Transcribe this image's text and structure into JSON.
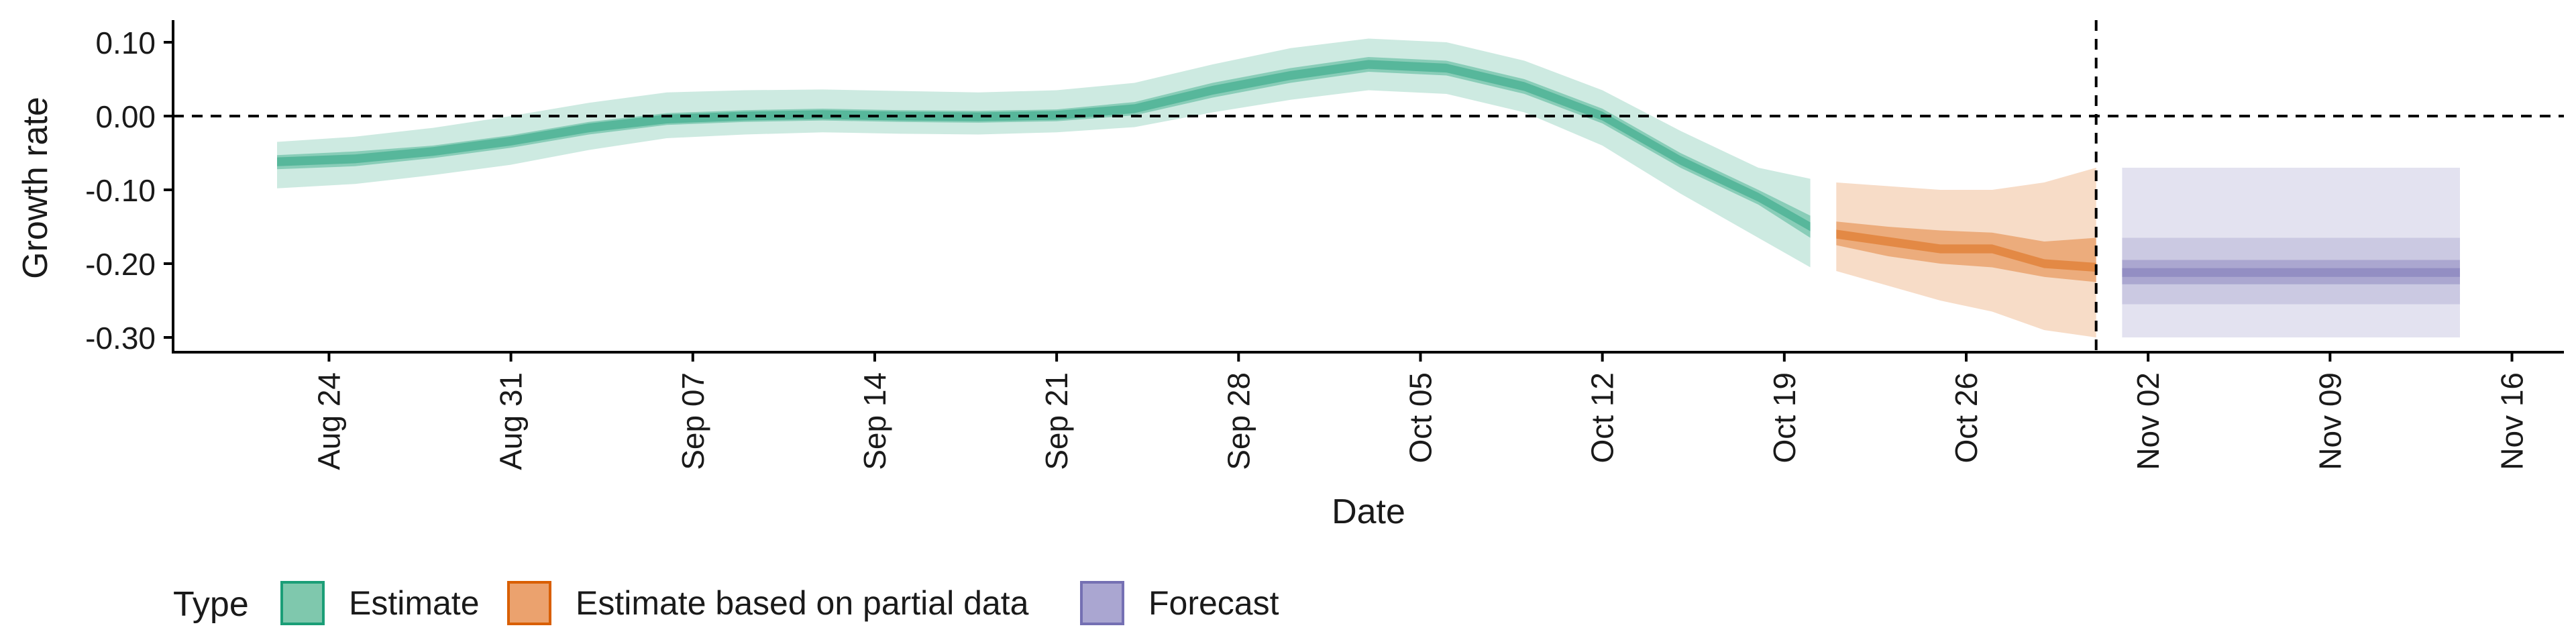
{
  "chart_data": {
    "type": "area",
    "xlabel": "Date",
    "ylabel": "Growth rate",
    "x_ticks": [
      "Aug 24",
      "Aug 31",
      "Sep 07",
      "Sep 14",
      "Sep 21",
      "Sep 28",
      "Oct 05",
      "Oct 12",
      "Oct 19",
      "Oct 26",
      "Nov 02",
      "Nov 09",
      "Nov 16"
    ],
    "y_ticks": [
      "0.10",
      "0.00",
      "-0.10",
      "-0.20",
      "-0.30"
    ],
    "ylim": [
      -0.32,
      0.13
    ],
    "xlim": [
      "2020-08-18",
      "2020-11-18"
    ],
    "grid": false,
    "reference_lines": {
      "horizontal_y": 0.0,
      "vertical_date": "2020-10-31"
    },
    "legend": {
      "position": "bottom-left",
      "title": "Type",
      "entries": [
        {
          "label": "Estimate",
          "fill": "#7fc8ad",
          "stroke": "#1b9e77"
        },
        {
          "label": "Estimate based on partial data",
          "fill": "#eba26e",
          "stroke": "#d95f02"
        },
        {
          "label": "Forecast",
          "fill": "#aaa6d1",
          "stroke": "#7570b3"
        }
      ]
    },
    "series": [
      {
        "type_label": "Estimate",
        "color": "#1b9e77",
        "x": [
          "2020-08-22",
          "2020-08-25",
          "2020-08-28",
          "2020-08-31",
          "2020-09-03",
          "2020-09-06",
          "2020-09-09",
          "2020-09-12",
          "2020-09-15",
          "2020-09-18",
          "2020-09-21",
          "2020-09-24",
          "2020-09-27",
          "2020-09-30",
          "2020-10-03",
          "2020-10-06",
          "2020-10-09",
          "2020-10-12",
          "2020-10-15",
          "2020-10-18",
          "2020-10-20"
        ],
        "median": [
          -0.062,
          -0.058,
          -0.048,
          -0.034,
          -0.016,
          -0.004,
          0.0,
          0.002,
          0.0,
          -0.001,
          0.001,
          0.01,
          0.035,
          0.055,
          0.07,
          0.065,
          0.04,
          0.0,
          -0.06,
          -0.11,
          -0.15
        ],
        "lower_50": [
          -0.072,
          -0.068,
          -0.057,
          -0.043,
          -0.025,
          -0.012,
          -0.008,
          -0.006,
          -0.008,
          -0.009,
          -0.007,
          0.001,
          0.025,
          0.045,
          0.06,
          0.055,
          0.03,
          -0.01,
          -0.07,
          -0.12,
          -0.165
        ],
        "upper_50": [
          -0.053,
          -0.048,
          -0.04,
          -0.026,
          -0.008,
          0.004,
          0.008,
          0.01,
          0.008,
          0.007,
          0.009,
          0.019,
          0.045,
          0.065,
          0.08,
          0.075,
          0.05,
          0.01,
          -0.05,
          -0.1,
          -0.135
        ],
        "lower_90": [
          -0.098,
          -0.092,
          -0.08,
          -0.066,
          -0.046,
          -0.03,
          -0.025,
          -0.022,
          -0.024,
          -0.025,
          -0.022,
          -0.015,
          0.005,
          0.022,
          0.035,
          0.03,
          0.005,
          -0.04,
          -0.105,
          -0.165,
          -0.205
        ],
        "upper_90": [
          -0.035,
          -0.028,
          -0.016,
          0.0,
          0.018,
          0.032,
          0.035,
          0.036,
          0.034,
          0.032,
          0.035,
          0.045,
          0.07,
          0.092,
          0.105,
          0.1,
          0.075,
          0.035,
          -0.02,
          -0.07,
          -0.085
        ]
      },
      {
        "type_label": "Estimate based on partial data",
        "color": "#d95f02",
        "x": [
          "2020-10-21",
          "2020-10-23",
          "2020-10-25",
          "2020-10-27",
          "2020-10-29",
          "2020-10-31"
        ],
        "median": [
          -0.16,
          -0.17,
          -0.18,
          -0.18,
          -0.2,
          -0.205
        ],
        "lower_50": [
          -0.175,
          -0.19,
          -0.2,
          -0.205,
          -0.218,
          -0.225
        ],
        "upper_50": [
          -0.143,
          -0.15,
          -0.155,
          -0.158,
          -0.17,
          -0.165
        ],
        "lower_90": [
          -0.21,
          -0.23,
          -0.25,
          -0.265,
          -0.29,
          -0.3
        ],
        "upper_90": [
          -0.09,
          -0.095,
          -0.1,
          -0.1,
          -0.09,
          -0.07
        ]
      },
      {
        "type_label": "Forecast",
        "color": "#7570b3",
        "x": [
          "2020-11-01",
          "2020-11-14"
        ],
        "median": [
          -0.212,
          -0.212
        ],
        "lower_50": [
          -0.228,
          -0.228
        ],
        "upper_50": [
          -0.195,
          -0.195
        ],
        "lower_90": [
          -0.255,
          -0.255
        ],
        "upper_90": [
          -0.165,
          -0.165
        ],
        "lower_outer": [
          -0.3,
          -0.3
        ],
        "upper_outer": [
          -0.07,
          -0.07
        ]
      }
    ]
  }
}
